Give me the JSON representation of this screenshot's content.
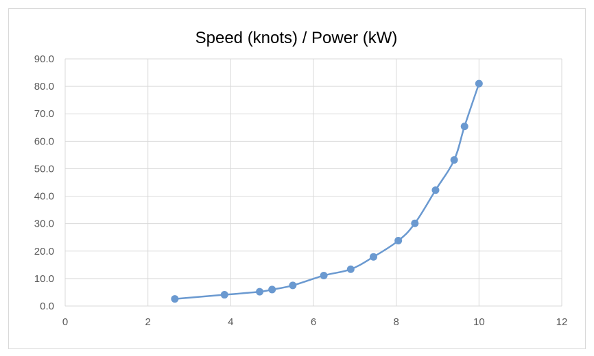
{
  "chart_data": {
    "type": "scatter",
    "title": "Speed (knots) / Power (kW)",
    "xlabel": "",
    "ylabel": "",
    "xlim": [
      0,
      12
    ],
    "ylim": [
      0,
      90
    ],
    "x_ticks": [
      "0",
      "2",
      "4",
      "6",
      "8",
      "10",
      "12"
    ],
    "y_ticks": [
      "0.0",
      "10.0",
      "20.0",
      "30.0",
      "40.0",
      "50.0",
      "60.0",
      "70.0",
      "80.0",
      "90.0"
    ],
    "grid": true,
    "legend": "none",
    "series": [
      {
        "color": "#6a99d0",
        "points": [
          {
            "x": 2.65,
            "y": 2.6
          },
          {
            "x": 3.85,
            "y": 4.1
          },
          {
            "x": 4.7,
            "y": 5.2
          },
          {
            "x": 5.0,
            "y": 6.0
          },
          {
            "x": 5.5,
            "y": 7.5
          },
          {
            "x": 6.25,
            "y": 11.1
          },
          {
            "x": 6.9,
            "y": 13.4
          },
          {
            "x": 7.45,
            "y": 17.9
          },
          {
            "x": 8.05,
            "y": 23.8
          },
          {
            "x": 8.45,
            "y": 30.1
          },
          {
            "x": 8.95,
            "y": 42.2
          },
          {
            "x": 9.4,
            "y": 53.2
          },
          {
            "x": 9.65,
            "y": 65.4
          },
          {
            "x": 10.0,
            "y": 81.0
          }
        ]
      }
    ]
  }
}
